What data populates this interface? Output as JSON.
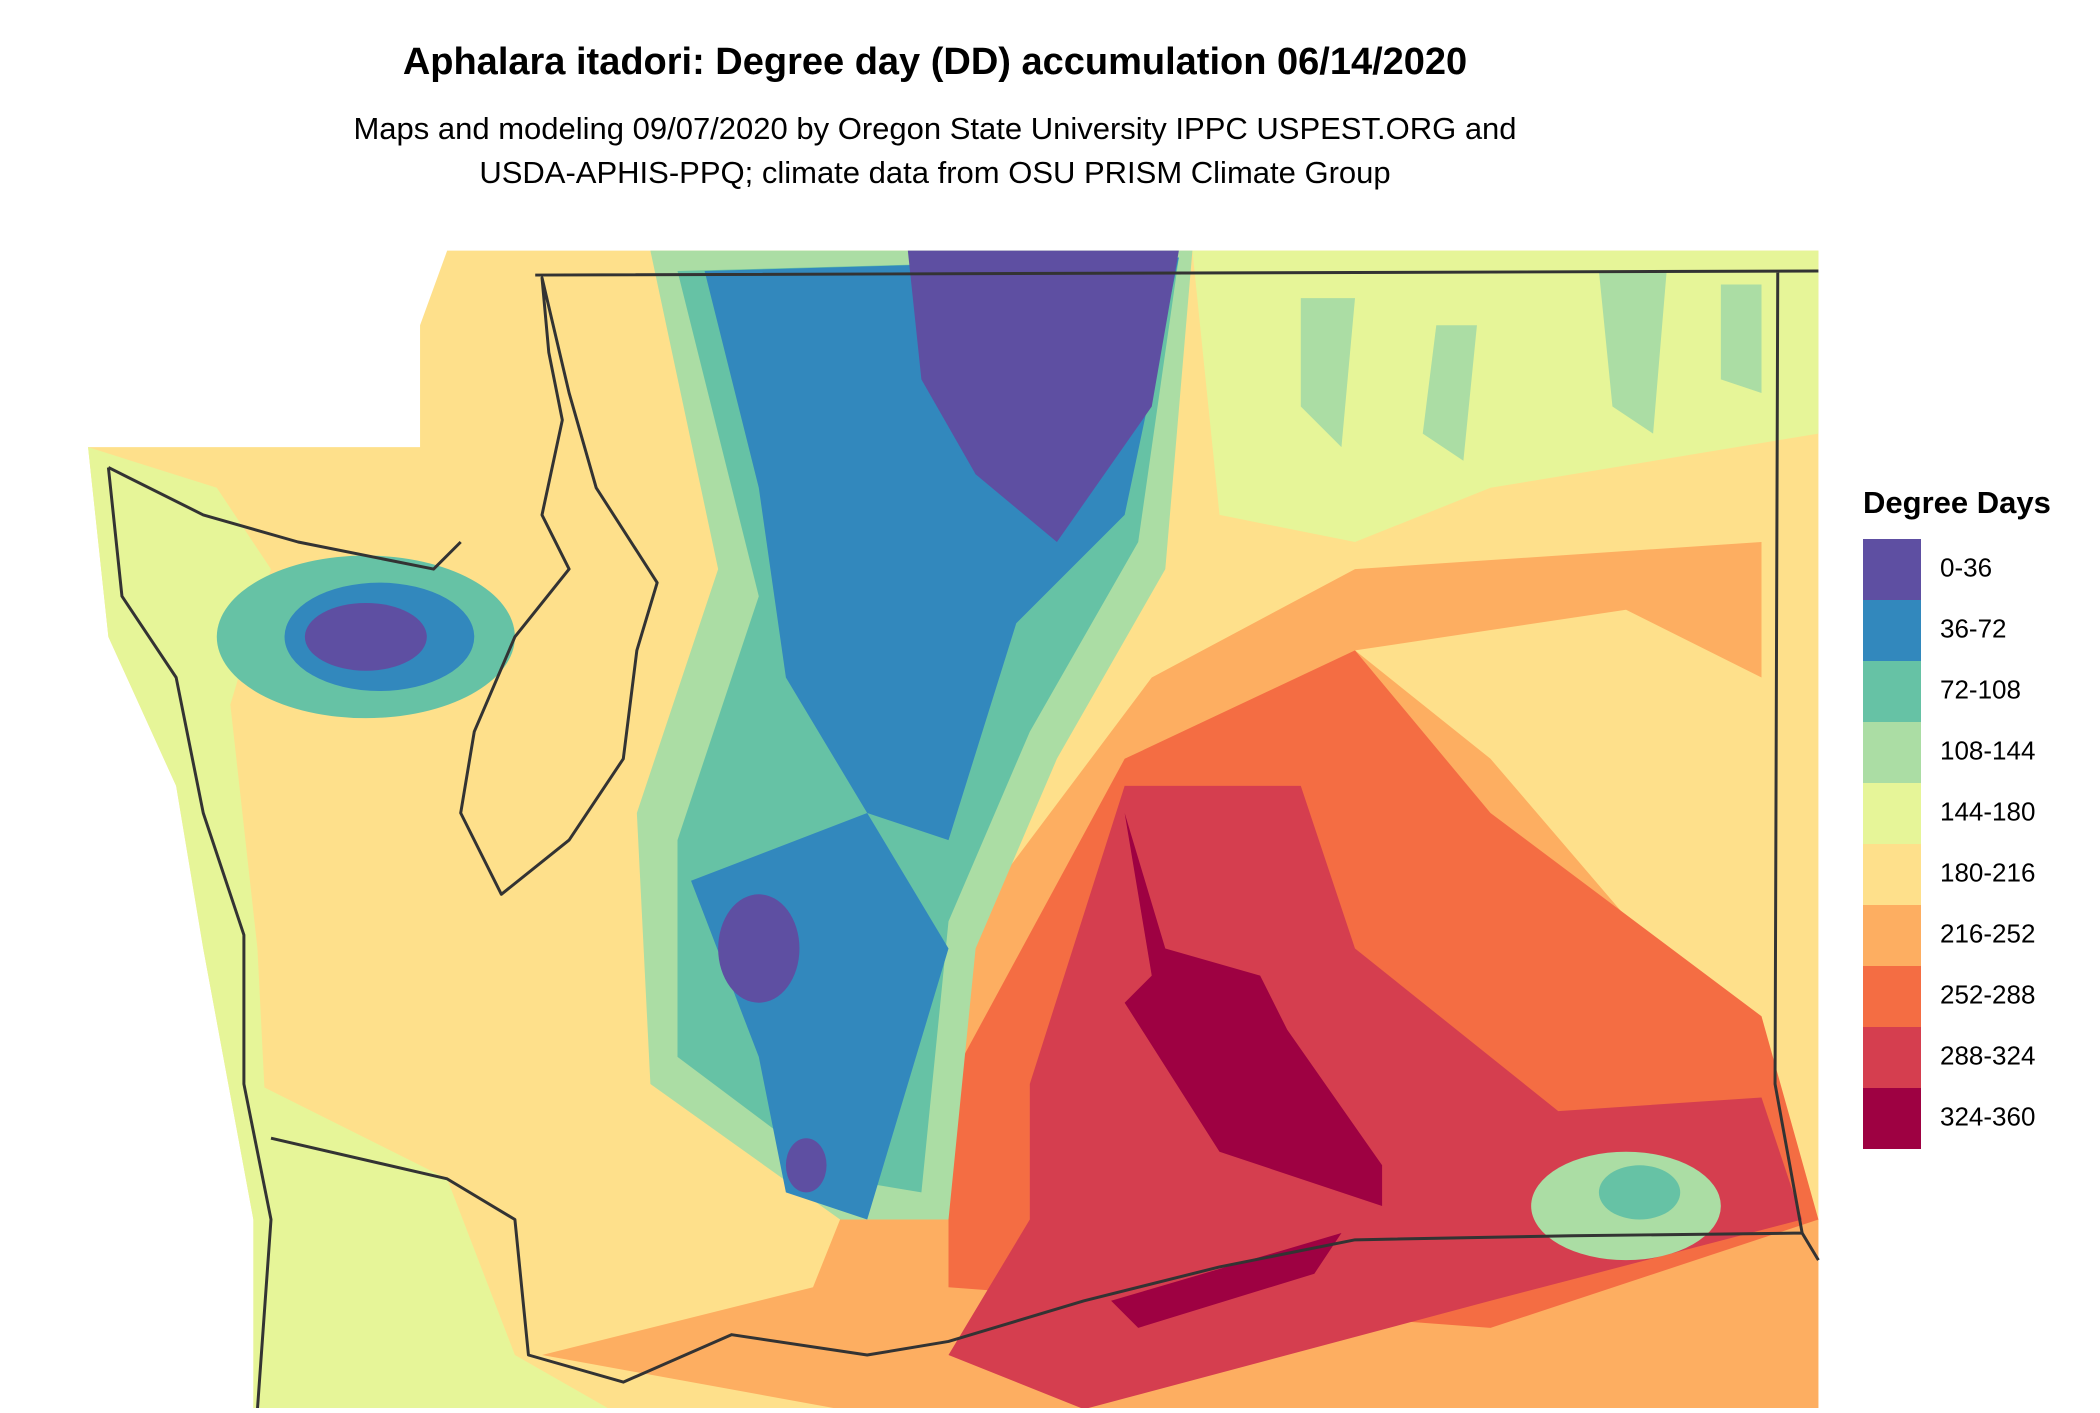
{
  "header": {
    "title": "Aphalara itadori: Degree day (DD) accumulation 06/14/2020",
    "subtitle": [
      "Maps and modeling 09/07/2020 by Oregon State University IPPC USPEST.ORG and",
      "USDA-APHIS-PPQ; climate data from OSU PRISM Climate Group"
    ]
  },
  "legend": {
    "title": "Degree Days",
    "items": [
      {
        "label": "0-36",
        "color": "#5e4fa2"
      },
      {
        "label": "36-72",
        "color": "#3288bd"
      },
      {
        "label": "72-108",
        "color": "#66c2a5"
      },
      {
        "label": "108-144",
        "color": "#abdda4"
      },
      {
        "label": "144-180",
        "color": "#e6f598"
      },
      {
        "label": "180-216",
        "color": "#fee08b"
      },
      {
        "label": "216-252",
        "color": "#fdae61"
      },
      {
        "label": "252-288",
        "color": "#f46d43"
      },
      {
        "label": "288-324",
        "color": "#d53e4f"
      },
      {
        "label": "324-360",
        "color": "#9e0142"
      }
    ]
  }
}
